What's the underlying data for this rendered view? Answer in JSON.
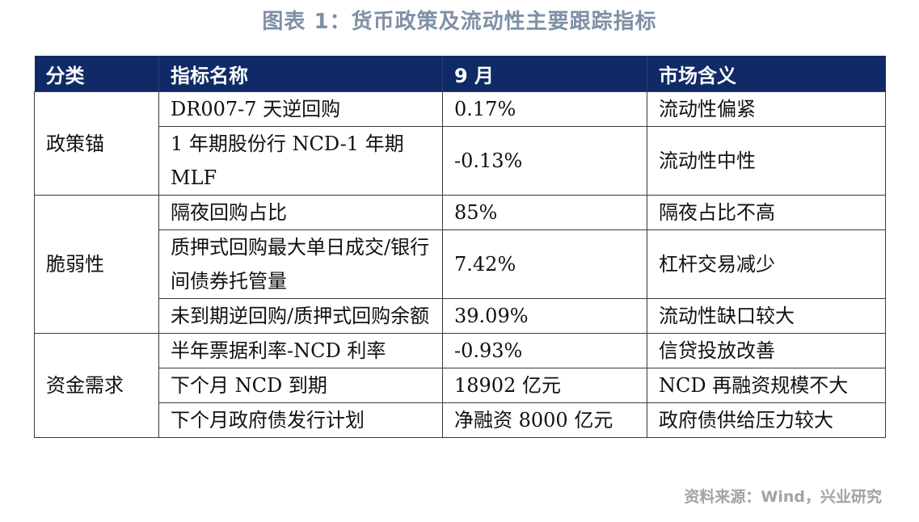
{
  "title": "图表 1：货币政策及流动性主要跟踪指标",
  "table": {
    "headers": [
      "分类",
      "指标名称",
      "9 月",
      "市场含义"
    ],
    "groups": [
      {
        "category": "政策锚",
        "rows": [
          {
            "indicator": "DR007-7 天逆回购",
            "value": "0.17%",
            "meaning": "流动性偏紧"
          },
          {
            "indicator": "1 年期股份行 NCD-1 年期 MLF",
            "value": "-0.13%",
            "meaning": "流动性中性"
          }
        ]
      },
      {
        "category": "脆弱性",
        "rows": [
          {
            "indicator": "隔夜回购占比",
            "value": "85%",
            "meaning": "隔夜占比不高"
          },
          {
            "indicator": "质押式回购最大单日成交/银行间债券托管量",
            "value": "7.42%",
            "meaning": "杠杆交易减少"
          },
          {
            "indicator": "未到期逆回购/质押式回购余额",
            "value": "39.09%",
            "meaning": "流动性缺口较大"
          }
        ]
      },
      {
        "category": "资金需求",
        "rows": [
          {
            "indicator": "半年票据利率-NCD 利率",
            "value": "-0.93%",
            "meaning": "信贷投放改善"
          },
          {
            "indicator": "下个月 NCD 到期",
            "value": "18902 亿元",
            "meaning": "NCD 再融资规模不大"
          },
          {
            "indicator": "下个月政府债发行计划",
            "value": "净融资 8000 亿元",
            "meaning": "政府债供给压力较大"
          }
        ]
      }
    ]
  },
  "source": "资料来源：Wind，兴业研究"
}
